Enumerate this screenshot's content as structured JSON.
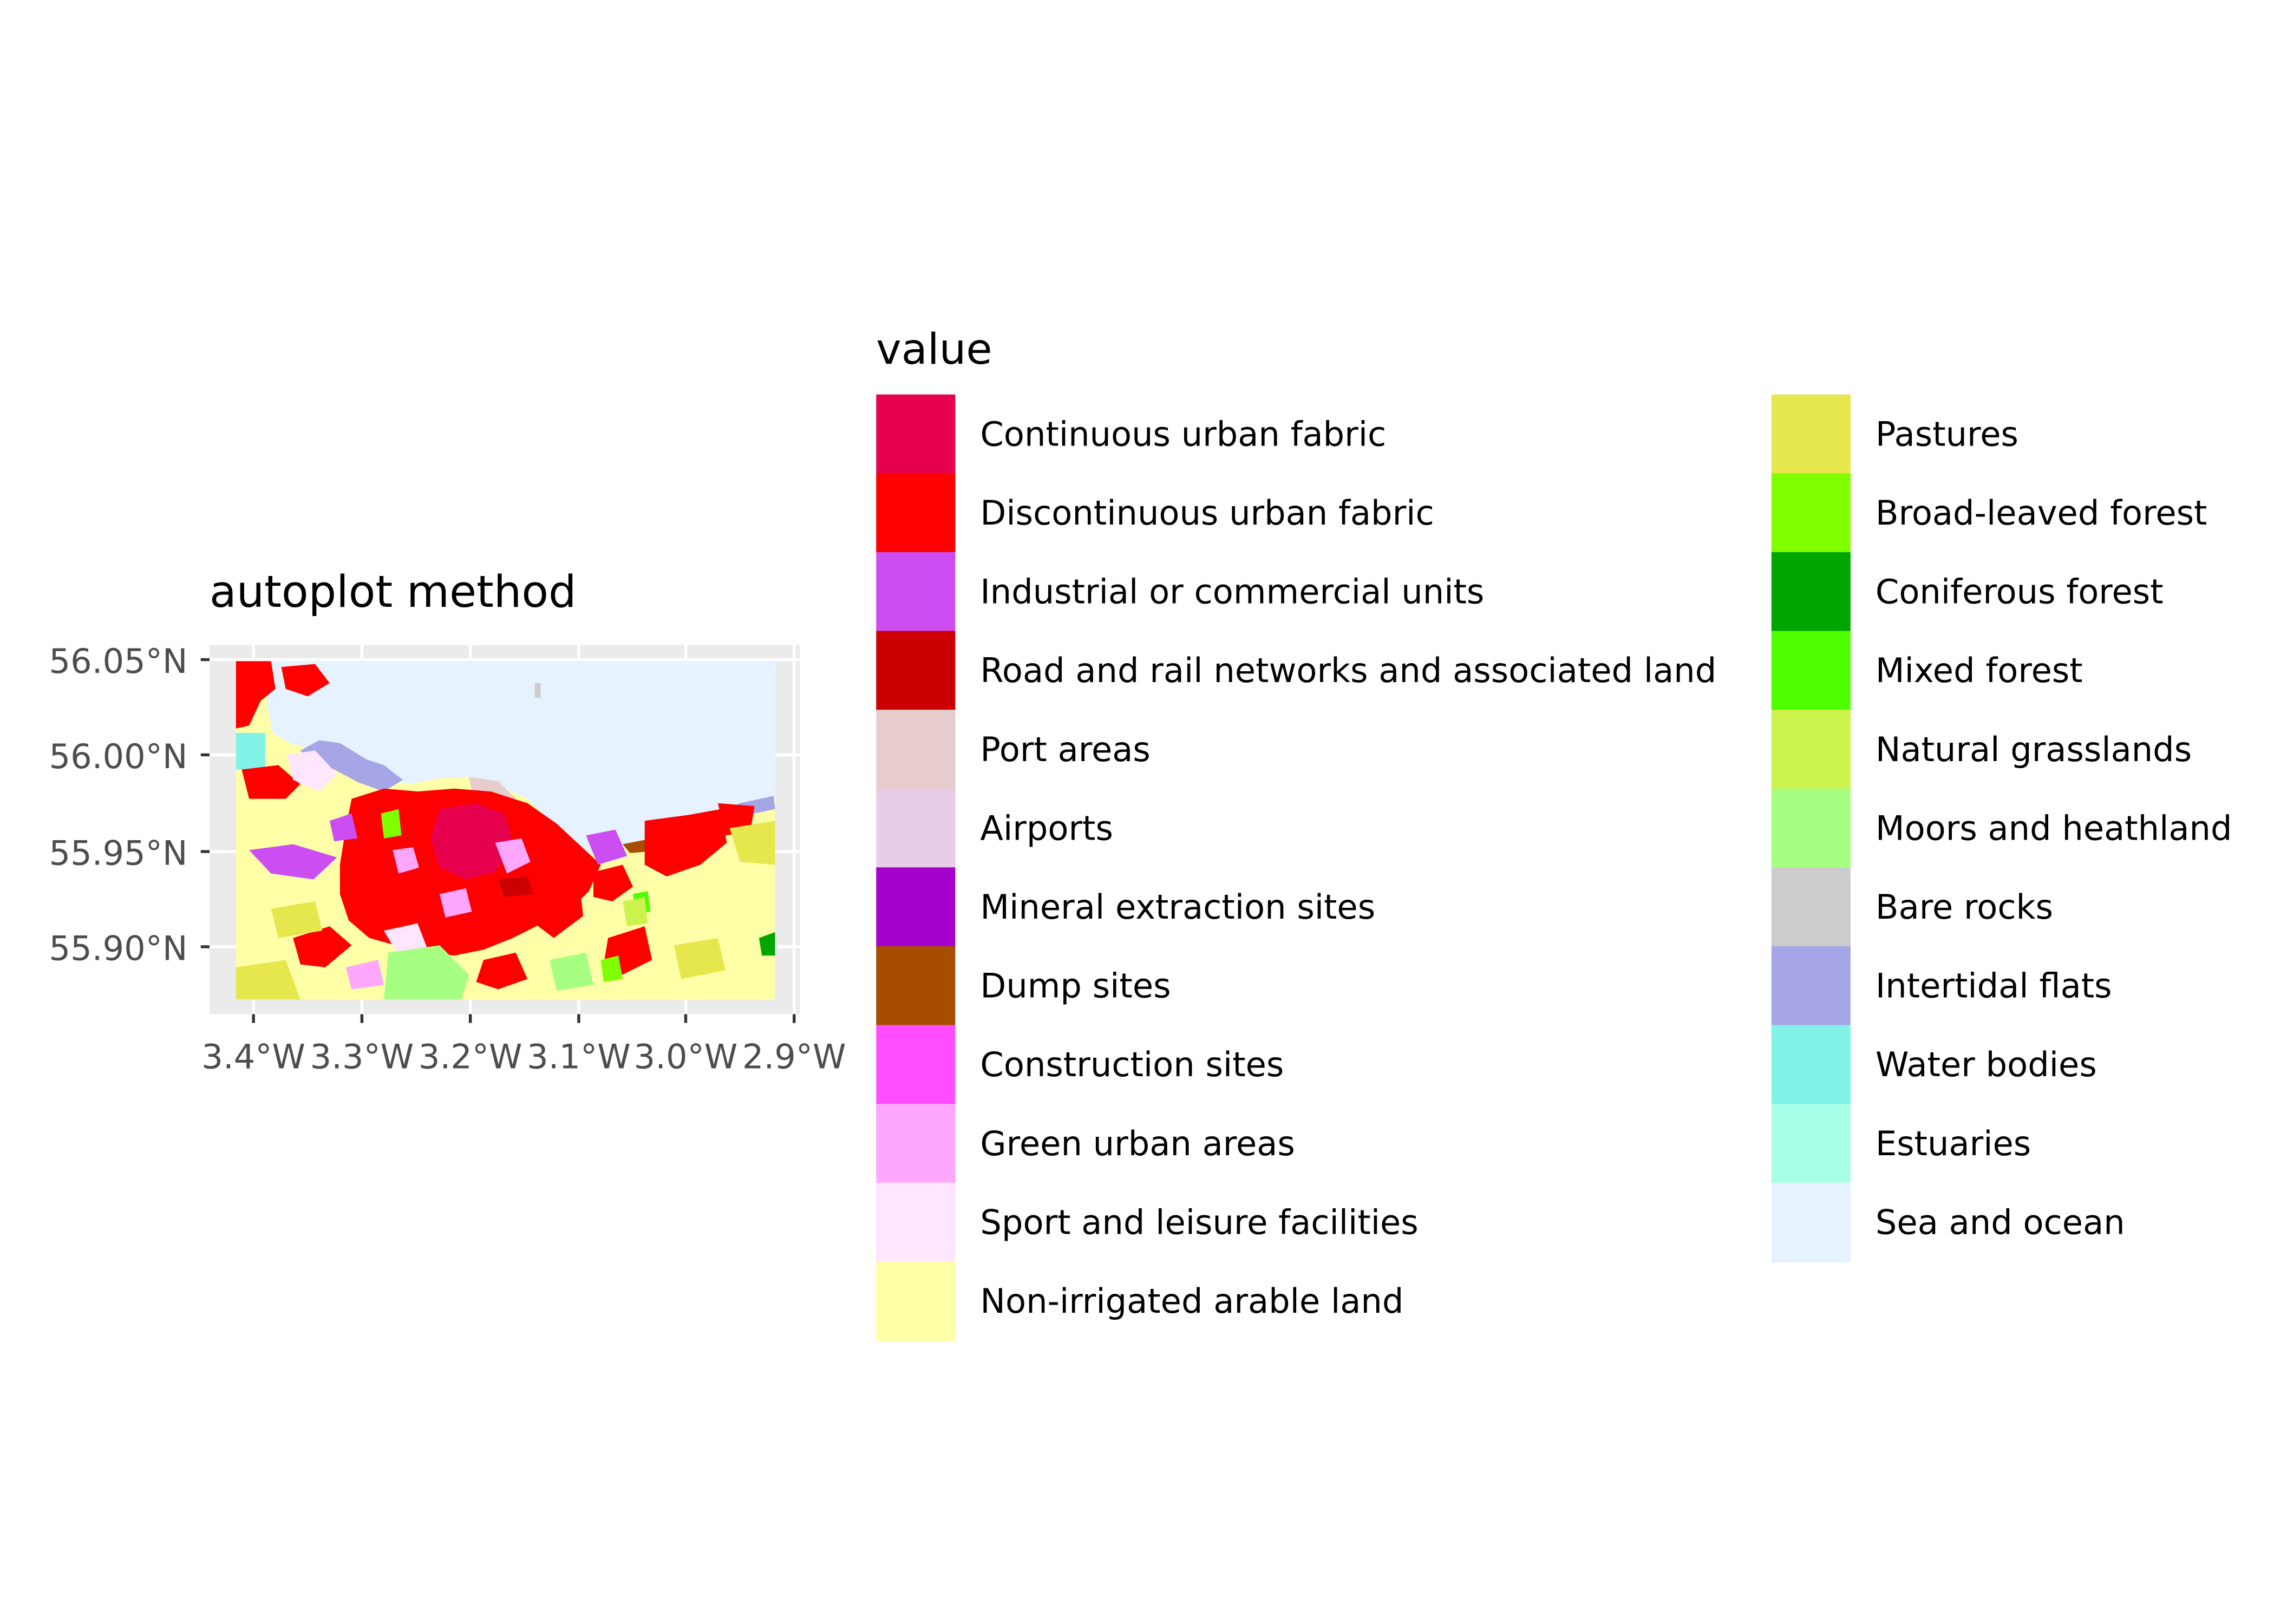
{
  "plot": {
    "title": "autoplot method",
    "y_ticks": [
      "56.05°N",
      "56.00°N",
      "55.95°N",
      "55.90°N"
    ],
    "x_ticks": [
      "3.4°W",
      "3.3°W",
      "3.2°W",
      "3.1°W",
      "3.0°W",
      "2.9°W"
    ]
  },
  "legend": {
    "title": "value",
    "items": [
      {
        "label": "Continuous urban fabric",
        "color": "#E6004D"
      },
      {
        "label": "Discontinuous urban fabric",
        "color": "#FF0000"
      },
      {
        "label": "Industrial or commercial units",
        "color": "#CC4DF2"
      },
      {
        "label": "Road and rail networks and associated land",
        "color": "#CC0000"
      },
      {
        "label": "Port areas",
        "color": "#E6CCCC"
      },
      {
        "label": "Airports",
        "color": "#E6CCE6"
      },
      {
        "label": "Mineral extraction sites",
        "color": "#A600CC"
      },
      {
        "label": "Dump sites",
        "color": "#A64D00"
      },
      {
        "label": "Construction sites",
        "color": "#FF4DFF"
      },
      {
        "label": "Green urban areas",
        "color": "#FFA6FF"
      },
      {
        "label": "Sport and leisure facilities",
        "color": "#FFE6FF"
      },
      {
        "label": "Non-irrigated arable land",
        "color": "#FFFFA8"
      },
      {
        "label": "Pastures",
        "color": "#E6E64D"
      },
      {
        "label": "Broad-leaved forest",
        "color": "#80FF00"
      },
      {
        "label": "Coniferous forest",
        "color": "#00A600"
      },
      {
        "label": "Mixed forest",
        "color": "#4DFF00"
      },
      {
        "label": "Natural grasslands",
        "color": "#CCF24D"
      },
      {
        "label": "Moors and heathland",
        "color": "#A6FF80"
      },
      {
        "label": "Bare rocks",
        "color": "#CCCCCC"
      },
      {
        "label": "Intertidal flats",
        "color": "#A6A6E6"
      },
      {
        "label": "Water bodies",
        "color": "#80F2E6"
      },
      {
        "label": "Estuaries",
        "color": "#A6FFE6"
      },
      {
        "label": "Sea and ocean",
        "color": "#E6F2FF"
      }
    ]
  }
}
